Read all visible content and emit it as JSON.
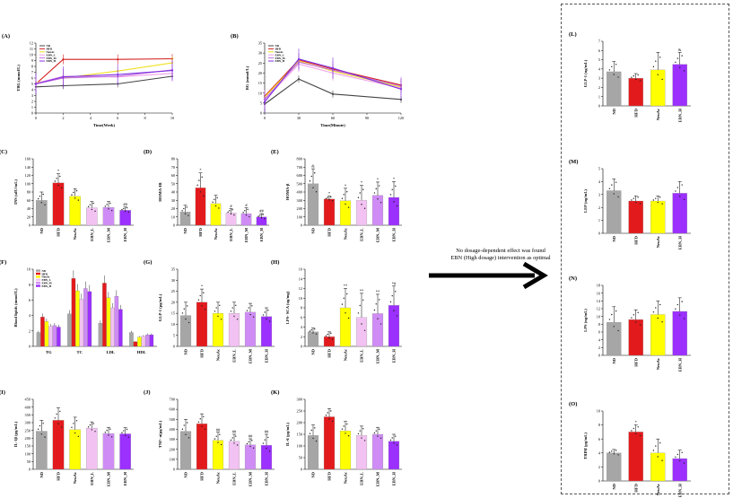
{
  "note": {
    "line1": "No dosage-dependent effect was found",
    "line2": "EBN (High dosage) intervention as optimal"
  },
  "colors": {
    "ND": "#a6a6a6",
    "HFD": "#e31a1c",
    "NeuAc": "#ffff00",
    "EBN_L": "#f2c2f2",
    "EBN_M": "#cf8cf5",
    "EBN_H": "#9b30ff",
    "line_ND": "#444444",
    "line_HFD": "#d42020",
    "line_NeuAc": "#f0e020",
    "line_EBN_L": "#f0a0e8",
    "line_EBN_M": "#c070e0",
    "line_EBN_H": "#8030e0"
  },
  "chart_data": [
    {
      "panel": "(A)",
      "type": "line",
      "ylabel": "TBG (mmol/L)",
      "xlabel": "Time(Week)",
      "ylim": [
        0,
        12
      ],
      "yticks": [
        0,
        1,
        2,
        3,
        4,
        5,
        6,
        7,
        8,
        9,
        10,
        11,
        12
      ],
      "xlim": [
        0,
        10
      ],
      "xticks": [
        0,
        2,
        4,
        6,
        8,
        10
      ],
      "legend": [
        "ND",
        "HFD",
        "NeuAc",
        "EBN_L",
        "EBN_M",
        "EBN_H"
      ],
      "series": [
        {
          "name": "ND",
          "x": [
            0,
            2,
            6,
            10
          ],
          "values": [
            4.5,
            4.7,
            5.0,
            6.3
          ]
        },
        {
          "name": "HFD",
          "x": [
            0,
            2,
            6,
            10
          ],
          "values": [
            5.0,
            9.2,
            9.2,
            9.3
          ]
        },
        {
          "name": "NeuAc",
          "x": [
            0,
            2,
            6,
            10
          ],
          "values": [
            5.2,
            6.0,
            7.2,
            8.6
          ]
        },
        {
          "name": "EBN_L",
          "x": [
            0,
            2,
            6,
            10
          ],
          "values": [
            5.1,
            6.3,
            6.2,
            6.8
          ]
        },
        {
          "name": "EBN_M",
          "x": [
            0,
            2,
            6,
            10
          ],
          "values": [
            5.0,
            6.0,
            6.3,
            7.4
          ]
        },
        {
          "name": "EBN_H",
          "x": [
            0,
            2,
            6,
            10
          ],
          "values": [
            5.0,
            6.2,
            6.6,
            7.3
          ]
        }
      ]
    },
    {
      "panel": "(B)",
      "type": "line",
      "ylabel": "BG (mmol/L)",
      "xlabel": "Time(Minute)",
      "ylim": [
        0,
        35
      ],
      "yticks": [
        0,
        5,
        10,
        15,
        20,
        25,
        30,
        35
      ],
      "xlim": [
        0,
        120
      ],
      "xticks": [
        0,
        30,
        60,
        90,
        120
      ],
      "legend": [
        "ND",
        "HFD",
        "NeuAc",
        "EBN_L",
        "EBN_M",
        "EBN_H"
      ],
      "series": [
        {
          "name": "ND",
          "x": [
            0,
            30,
            60,
            120
          ],
          "values": [
            4.5,
            17.0,
            9.5,
            6.8
          ]
        },
        {
          "name": "HFD",
          "x": [
            0,
            30,
            60,
            120
          ],
          "values": [
            8.5,
            26.5,
            22.0,
            14.0
          ]
        },
        {
          "name": "NeuAc",
          "x": [
            0,
            30,
            60,
            120
          ],
          "values": [
            8.0,
            26.0,
            21.0,
            13.0
          ]
        },
        {
          "name": "EBN_L",
          "x": [
            0,
            30,
            60,
            120
          ],
          "values": [
            6.5,
            24.5,
            20.0,
            12.5
          ]
        },
        {
          "name": "EBN_M",
          "x": [
            0,
            30,
            60,
            120
          ],
          "values": [
            7.0,
            25.5,
            21.5,
            13.5
          ]
        },
        {
          "name": "EBN_H",
          "x": [
            0,
            30,
            60,
            120
          ],
          "values": [
            5.5,
            27.0,
            22.5,
            12.0
          ]
        }
      ]
    },
    {
      "panel": "(C)",
      "type": "bar",
      "ylabel": "INS (uIU/mL)",
      "ylim": [
        0,
        160
      ],
      "yticks": [
        0,
        20,
        40,
        60,
        80,
        100,
        120,
        140,
        160
      ],
      "categories": [
        "ND",
        "HFD",
        "NeuAc",
        "EBN_L",
        "EBN_M",
        "EBN_H"
      ],
      "values": [
        60,
        102,
        70,
        42,
        43,
        36
      ],
      "errors": [
        20,
        22,
        18,
        15,
        14,
        8
      ],
      "labels": [
        "",
        "*",
        "",
        "",
        "",
        "##"
      ]
    },
    {
      "panel": "(D)",
      "type": "bar",
      "ylabel": "HOMA-IR",
      "ylim": [
        0,
        80
      ],
      "yticks": [
        0,
        10,
        20,
        30,
        40,
        50,
        60,
        70,
        80
      ],
      "categories": [
        "ND",
        "HFD",
        "NeuAc",
        "EBN_L",
        "EBN_M",
        "EBN_H"
      ],
      "values": [
        16,
        45,
        26,
        15,
        14,
        10
      ],
      "errors": [
        8,
        18,
        10,
        5,
        7,
        4
      ],
      "labels": [
        "",
        "*",
        "",
        "#",
        "#",
        "##"
      ]
    },
    {
      "panel": "(E)",
      "type": "bar",
      "ylabel": "HOMA-β",
      "ylim": [
        0,
        800
      ],
      "yticks": [
        0,
        100,
        200,
        300,
        400,
        500,
        600,
        700,
        800
      ],
      "categories": [
        "ND",
        "HFD",
        "NeuAc",
        "EBN_L",
        "EBN_M",
        "EBN_H"
      ],
      "values": [
        500,
        315,
        295,
        300,
        360,
        335
      ],
      "errors": [
        180,
        35,
        150,
        180,
        160,
        190
      ],
      "labels": [
        "&",
        "*",
        "*",
        "*",
        "*",
        "*"
      ]
    },
    {
      "panel": "(F)",
      "type": "bar",
      "ylabel": "Blood lipids (mmol/L)",
      "ylim": [
        0,
        10
      ],
      "yticks": [
        0,
        2,
        4,
        6,
        8,
        10
      ],
      "categories": [
        "TG",
        "TC",
        "LDL",
        "HDL"
      ],
      "legend": [
        "ND",
        "HFD",
        "NeuAc",
        "EBN_L",
        "EBN_M",
        "EBN_H"
      ],
      "series": [
        {
          "name": "ND",
          "values": [
            1.8,
            4.2,
            3.0,
            1.8
          ]
        },
        {
          "name": "HFD",
          "values": [
            3.8,
            8.8,
            8.2,
            0.6
          ]
        },
        {
          "name": "NeuAc",
          "values": [
            3.2,
            7.2,
            6.3,
            1.2
          ]
        },
        {
          "name": "EBN_L",
          "values": [
            2.6,
            6.1,
            5.0,
            1.3
          ]
        },
        {
          "name": "EBN_M",
          "values": [
            2.7,
            7.5,
            6.5,
            1.5
          ]
        },
        {
          "name": "EBN_H",
          "values": [
            2.5,
            7.1,
            4.8,
            1.5
          ]
        }
      ]
    },
    {
      "panel": "(G)",
      "type": "bar",
      "ylabel": "GLP-1 (pg/mL)",
      "ylim": [
        0,
        35
      ],
      "yticks": [
        0,
        5,
        10,
        15,
        20,
        25,
        30,
        35
      ],
      "categories": [
        "ND",
        "HFD",
        "NeuAc",
        "EBN_L",
        "EBN_M",
        "EBN_H"
      ],
      "values": [
        14,
        20,
        15,
        15,
        15.5,
        13.5
      ],
      "errors": [
        6,
        6,
        5,
        5,
        4,
        4
      ],
      "labels": [
        "",
        "*",
        "",
        "",
        "",
        ""
      ]
    },
    {
      "panel": "(H)",
      "type": "bar",
      "ylabel": "LPS- SCA (ug/mg)",
      "ylim": [
        0,
        16
      ],
      "yticks": [
        0,
        2,
        4,
        6,
        8,
        10,
        12,
        14,
        16
      ],
      "categories": [
        "ND",
        "HFD",
        "NeuAc",
        "EBN_L",
        "EBN_M",
        "EBN_H"
      ],
      "values": [
        3.0,
        2.0,
        8.0,
        6.0,
        6.8,
        8.5
      ],
      "errors": [
        0.8,
        1.0,
        4.0,
        5.0,
        4.0,
        4.0
      ],
      "labels": [
        "",
        "",
        "**",
        "**",
        "**",
        "*#"
      ]
    },
    {
      "panel": "(I)",
      "type": "bar",
      "ylabel": "IL-1β (pg/mL)",
      "ylim": [
        0,
        450
      ],
      "yticks": [
        0,
        50,
        100,
        150,
        200,
        250,
        300,
        350,
        400,
        450
      ],
      "categories": [
        "ND",
        "HFD",
        "NeuAc",
        "EBN_L",
        "EBN_M",
        "EBN_H"
      ],
      "values": [
        245,
        315,
        255,
        265,
        230,
        228
      ],
      "errors": [
        70,
        80,
        80,
        40,
        40,
        40
      ],
      "labels": [
        "",
        "",
        "",
        "",
        "",
        ""
      ]
    },
    {
      "panel": "(J)",
      "type": "bar",
      "ylabel": "TNF- α(pg/mL)",
      "ylim": [
        0,
        700
      ],
      "yticks": [
        0,
        100,
        200,
        300,
        400,
        500,
        600,
        700
      ],
      "categories": [
        "ND",
        "HFD",
        "NeuAc",
        "EBN_L",
        "EBN_M",
        "EBN_H"
      ],
      "values": [
        380,
        455,
        290,
        280,
        245,
        240
      ],
      "errors": [
        120,
        100,
        80,
        70,
        60,
        110
      ],
      "labels": [
        "",
        "",
        "##",
        "##",
        "##",
        "##"
      ]
    },
    {
      "panel": "(K)",
      "type": "bar",
      "ylabel": "IL-6 (pg/mL)",
      "ylim": [
        0,
        300
      ],
      "yticks": [
        0,
        50,
        100,
        150,
        200,
        250,
        300
      ],
      "categories": [
        "ND",
        "HFD",
        "NeuAc",
        "EBN_L",
        "EBN_M",
        "EBN_H"
      ],
      "values": [
        145,
        225,
        165,
        145,
        150,
        120
      ],
      "errors": [
        45,
        35,
        40,
        40,
        30,
        30
      ],
      "labels": [
        "",
        "",
        "",
        "",
        "",
        ""
      ]
    },
    {
      "panel": "(L)",
      "type": "bar",
      "ylabel": "GLP-1 (ng/mL)",
      "ylim": [
        0,
        7
      ],
      "yticks": [
        0,
        1,
        2,
        3,
        4,
        5,
        6,
        7
      ],
      "categories": [
        "ND",
        "HFD",
        "NeuAc",
        "EBN_H"
      ],
      "values": [
        3.7,
        3.0,
        3.9,
        4.5
      ],
      "errors": [
        1.1,
        0.5,
        1.9,
        1.3
      ],
      "labels": [
        "",
        "",
        "",
        "&"
      ]
    },
    {
      "panel": "(M)",
      "type": "bar",
      "ylabel": "LEP (ng/mL)",
      "ylim": [
        0,
        5
      ],
      "yticks": [
        0,
        1,
        2,
        3,
        4,
        5
      ],
      "categories": [
        "ND",
        "HFD",
        "NeuAc",
        "EBN_H"
      ],
      "values": [
        3.3,
        2.5,
        2.5,
        3.1
      ],
      "errors": [
        0.9,
        0.4,
        0.4,
        0.9
      ],
      "labels": [
        "",
        "",
        "",
        ""
      ]
    },
    {
      "panel": "(N)",
      "type": "bar",
      "ylabel": "LPS (ng/mL)",
      "ylim": [
        0,
        18
      ],
      "yticks": [
        0,
        2,
        4,
        6,
        8,
        10,
        12,
        14,
        16,
        18
      ],
      "categories": [
        "ND",
        "HFD",
        "NeuAc",
        "EBN_H"
      ],
      "values": [
        8.5,
        9.2,
        10.5,
        11.3
      ],
      "errors": [
        4.0,
        2.5,
        3.5,
        3.5
      ],
      "labels": [
        "",
        "",
        "",
        ""
      ]
    },
    {
      "panel": "(O)",
      "type": "bar",
      "ylabel": "TRIM (pg/mL)",
      "ylim": [
        0,
        10
      ],
      "yticks": [
        0,
        2,
        4,
        6,
        8,
        10
      ],
      "categories": [
        "ND",
        "HFD",
        "NeuAc",
        "EBN_H"
      ],
      "values": [
        4.0,
        7.0,
        4.0,
        3.2
      ],
      "errors": [
        0.5,
        1.0,
        2.0,
        1.2
      ],
      "labels": [
        "",
        "*",
        "",
        ""
      ]
    }
  ]
}
